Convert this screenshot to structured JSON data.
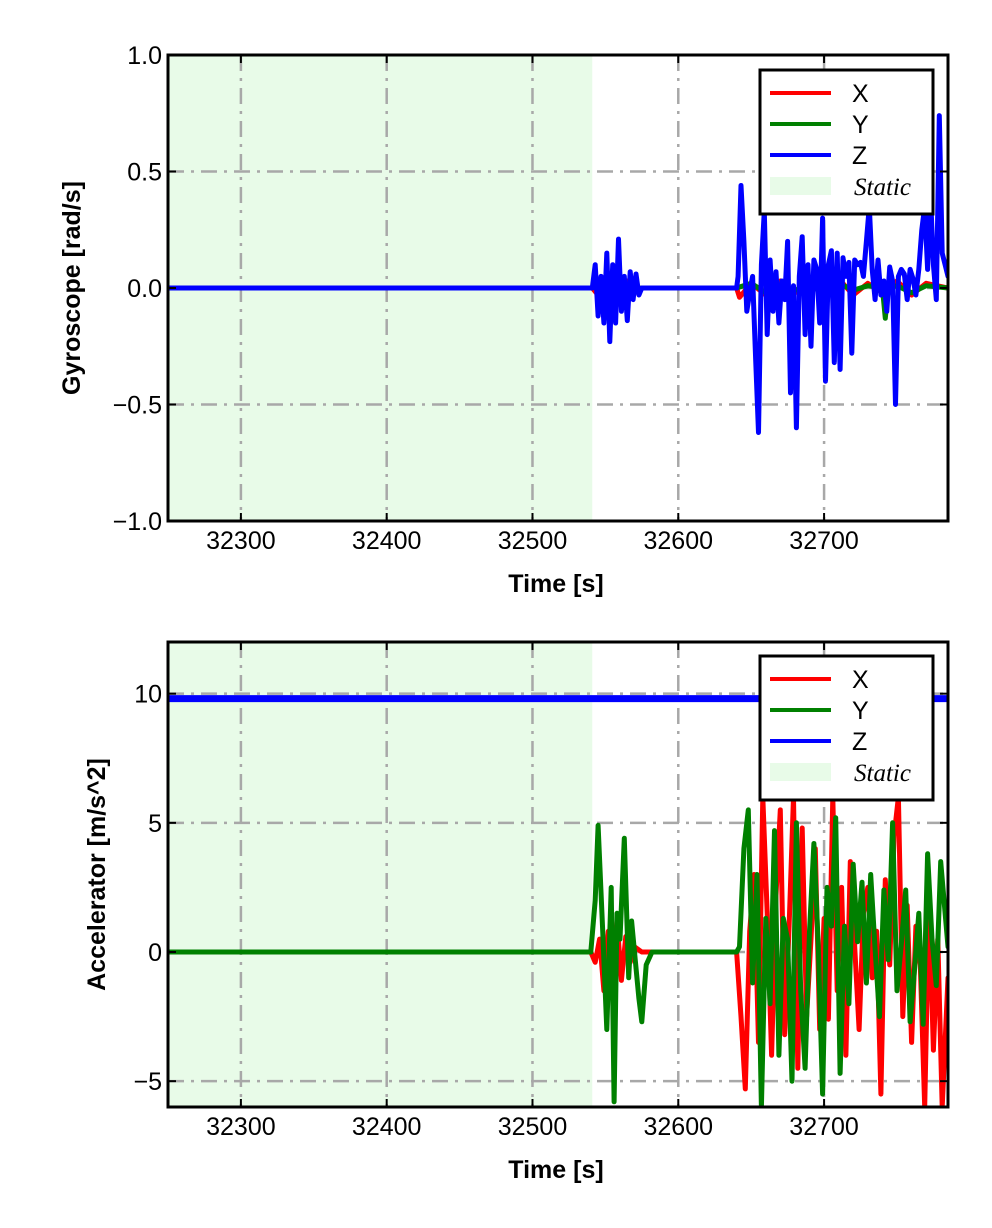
{
  "colors": {
    "x": "#ff0000",
    "y": "#008000",
    "z": "#0000ff",
    "static": "#e8fbe8",
    "grid": "#a8a8a8"
  },
  "chart_data": [
    {
      "type": "line",
      "xlabel": "Time [s]",
      "ylabel": "Gyroscope [rad/s]",
      "xlim": [
        32250,
        32785
      ],
      "ylim": [
        -1.0,
        1.0
      ],
      "xticks": [
        32300,
        32400,
        32500,
        32600,
        32700
      ],
      "xtick_labels": [
        "32300",
        "32400",
        "32500",
        "32600",
        "32700"
      ],
      "yticks": [
        1.0,
        0.5,
        0.0,
        -0.5,
        -1.0
      ],
      "ytick_labels": [
        "1.0",
        "0.5",
        "0.0",
        "−0.5",
        "−1.0"
      ],
      "grid": true,
      "legend_position": "top-right",
      "static_region": {
        "label": "Static",
        "x": [
          32250,
          32541
        ]
      },
      "series": [
        {
          "name": "X",
          "color_key": "x",
          "x": [
            32250,
            32541,
            32545,
            32548,
            32552,
            32556,
            32560,
            32565,
            32570,
            32575,
            32640,
            32642,
            32650,
            32660,
            32670,
            32680,
            32690,
            32700,
            32710,
            32720,
            32730,
            32740,
            32750,
            32760,
            32770,
            32785
          ],
          "y": [
            0,
            0,
            -0.03,
            0.04,
            -0.05,
            0.03,
            -0.04,
            0.03,
            -0.02,
            0,
            0,
            -0.04,
            0.02,
            -0.03,
            0.03,
            -0.02,
            0.02,
            -0.03,
            0.04,
            -0.03,
            0.02,
            -0.02,
            0.03,
            -0.03,
            0.02,
            0
          ]
        },
        {
          "name": "Y",
          "color_key": "y",
          "x": [
            32250,
            32541,
            32545,
            32550,
            32555,
            32560,
            32575,
            32640,
            32650,
            32660,
            32670,
            32680,
            32690,
            32700,
            32710,
            32720,
            32730,
            32740,
            32742,
            32744,
            32750,
            32760,
            32770,
            32785
          ],
          "y": [
            0,
            0,
            0.03,
            -0.04,
            0.03,
            -0.02,
            0,
            0,
            0.02,
            -0.02,
            0.01,
            -0.01,
            0.01,
            -0.02,
            0.02,
            -0.01,
            0.01,
            0,
            -0.13,
            0,
            0.01,
            -0.02,
            0.01,
            0
          ]
        },
        {
          "name": "Z",
          "color_key": "z",
          "x": [
            32250,
            32541,
            32543,
            32545,
            32547,
            32549,
            32551,
            32553,
            32555,
            32557,
            32559,
            32561,
            32563,
            32565,
            32567,
            32569,
            32571,
            32573,
            32575,
            32640,
            32641,
            32643,
            32645,
            32647,
            32649,
            32651,
            32653,
            32655,
            32657,
            32659,
            32661,
            32663,
            32665,
            32667,
            32669,
            32671,
            32673,
            32675,
            32677,
            32679,
            32681,
            32683,
            32685,
            32687,
            32689,
            32691,
            32693,
            32695,
            32697,
            32699,
            32701,
            32703,
            32705,
            32707,
            32709,
            32711,
            32713,
            32715,
            32717,
            32719,
            32721,
            32723,
            32725,
            32727,
            32729,
            32731,
            32733,
            32735,
            32737,
            32739,
            32741,
            32743,
            32745,
            32747,
            32749,
            32751,
            32753,
            32755,
            32757,
            32759,
            32761,
            32763,
            32765,
            32767,
            32769,
            32771,
            32773,
            32775,
            32777,
            32779,
            32781,
            32783,
            32785
          ],
          "y": [
            0,
            0,
            0.1,
            -0.12,
            0.05,
            -0.15,
            0.15,
            -0.23,
            0.1,
            -0.15,
            0.21,
            -0.1,
            0.05,
            -0.14,
            0.07,
            -0.05,
            0.06,
            -0.03,
            0,
            0,
            0.05,
            0.44,
            0.2,
            -0.1,
            -0.02,
            0.05,
            -0.3,
            -0.62,
            0.1,
            0.33,
            -0.2,
            0.12,
            -0.1,
            0.07,
            -0.15,
            0.03,
            -0.05,
            0.2,
            -0.45,
            0.01,
            -0.6,
            0.05,
            0.22,
            -0.2,
            0.1,
            -0.25,
            0.12,
            0.08,
            -0.15,
            0.3,
            -0.4,
            0.1,
            0.16,
            -0.32,
            0.15,
            -0.35,
            0.13,
            0.05,
            0.11,
            -0.28,
            0.12,
            0.1,
            0.11,
            0.05,
            0.2,
            0.35,
            0.08,
            -0.05,
            0.12,
            -0.03,
            0.03,
            -0.1,
            0.09,
            0.03,
            -0.5,
            0.05,
            0.08,
            0.06,
            -0.05,
            0.08,
            0.04,
            -0.03,
            0.08,
            0.25,
            0.35,
            0.08,
            0.4,
            0.1,
            -0.05,
            0.74,
            0.15,
            0.1,
            0.05
          ]
        }
      ]
    },
    {
      "type": "line",
      "xlabel": "Time [s]",
      "ylabel": "Accelerator [m/s^2]",
      "xlim": [
        32250,
        32785
      ],
      "ylim": [
        -6,
        12
      ],
      "xticks": [
        32300,
        32400,
        32500,
        32600,
        32700
      ],
      "xtick_labels": [
        "32300",
        "32400",
        "32500",
        "32600",
        "32700"
      ],
      "yticks": [
        10,
        5,
        0,
        -5
      ],
      "ytick_labels": [
        "10",
        "5",
        "0",
        "−5"
      ],
      "grid": true,
      "legend_position": "top-right",
      "static_region": {
        "label": "Static",
        "x": [
          32250,
          32541
        ]
      },
      "series": [
        {
          "name": "X",
          "color_key": "x",
          "x": [
            32250,
            32540,
            32543,
            32546,
            32549,
            32552,
            32555,
            32558,
            32561,
            32564,
            32567,
            32570,
            32575,
            32580,
            32640,
            32643,
            32646,
            32649,
            32652,
            32655,
            32658,
            32661,
            32664,
            32667,
            32670,
            32673,
            32676,
            32679,
            32682,
            32685,
            32688,
            32691,
            32694,
            32697,
            32700,
            32703,
            32706,
            32709,
            32712,
            32715,
            32718,
            32721,
            32724,
            32727,
            32730,
            32733,
            32736,
            32739,
            32742,
            32745,
            32748,
            32751,
            32754,
            32757,
            32760,
            32763,
            32766,
            32769,
            32772,
            32775,
            32778,
            32781,
            32785
          ],
          "y": [
            0,
            0,
            -0.4,
            0.5,
            -1.5,
            0.8,
            -0.5,
            1.2,
            -1.1,
            0.6,
            -0.4,
            0.2,
            0,
            0,
            0,
            -2.5,
            -5.3,
            0.8,
            3.0,
            -3.5,
            6.0,
            1.5,
            -4.0,
            2.2,
            5.5,
            -3.2,
            1.0,
            6.0,
            -4.5,
            4.8,
            -2.5,
            0.5,
            4.0,
            -3.0,
            1.3,
            -2.6,
            6.0,
            -1.5,
            2.5,
            -4.0,
            3.5,
            0.2,
            -3.0,
            1.5,
            2.5,
            -1.0,
            0.8,
            -5.5,
            2.8,
            -0.5,
            4.5,
            6.0,
            -2.5,
            1.8,
            -3.5,
            1.0,
            -0.5,
            -6.0,
            2.0,
            -3.8,
            0.5,
            -6.0,
            -1.0
          ]
        },
        {
          "name": "Y",
          "color_key": "y",
          "x": [
            32250,
            32540,
            32543,
            32545,
            32548,
            32551,
            32554,
            32556,
            32558,
            32560,
            32563,
            32566,
            32568,
            32570,
            32573,
            32575,
            32578,
            32582,
            32640,
            32642,
            32645,
            32648,
            32651,
            32654,
            32657,
            32660,
            32663,
            32666,
            32669,
            32672,
            32675,
            32678,
            32681,
            32684,
            32687,
            32690,
            32693,
            32696,
            32699,
            32702,
            32705,
            32708,
            32711,
            32714,
            32717,
            32720,
            32723,
            32726,
            32729,
            32732,
            32735,
            32738,
            32741,
            32744,
            32747,
            32750,
            32753,
            32756,
            32759,
            32762,
            32765,
            32768,
            32771,
            32774,
            32777,
            32780,
            32785
          ],
          "y": [
            0,
            0,
            2.0,
            4.9,
            1.0,
            -3.0,
            2.5,
            -5.8,
            1.5,
            0.5,
            4.4,
            -1.0,
            1.2,
            0,
            -1.8,
            -2.7,
            -0.5,
            0,
            0,
            0.2,
            4.0,
            5.5,
            -1.2,
            3.0,
            -6.0,
            1.3,
            -2.0,
            4.7,
            -4.0,
            1.3,
            0.5,
            -5.0,
            5.0,
            -1.5,
            -4.5,
            0.8,
            4.2,
            0.3,
            -5.5,
            2.5,
            1.0,
            5.2,
            -4.7,
            1.0,
            -2.0,
            3.4,
            0.4,
            2.7,
            -1.2,
            3.0,
            0.1,
            -2.5,
            2.4,
            -0.3,
            5.0,
            -1.5,
            0.3,
            2.4,
            -2.7,
            -0.7,
            1.5,
            -2.8,
            3.8,
            0.5,
            -1.3,
            3.5,
            0.2
          ]
        },
        {
          "name": "Z",
          "color_key": "z",
          "x": [
            32250,
            32785
          ],
          "y": [
            9.81,
            9.81
          ]
        }
      ]
    }
  ]
}
